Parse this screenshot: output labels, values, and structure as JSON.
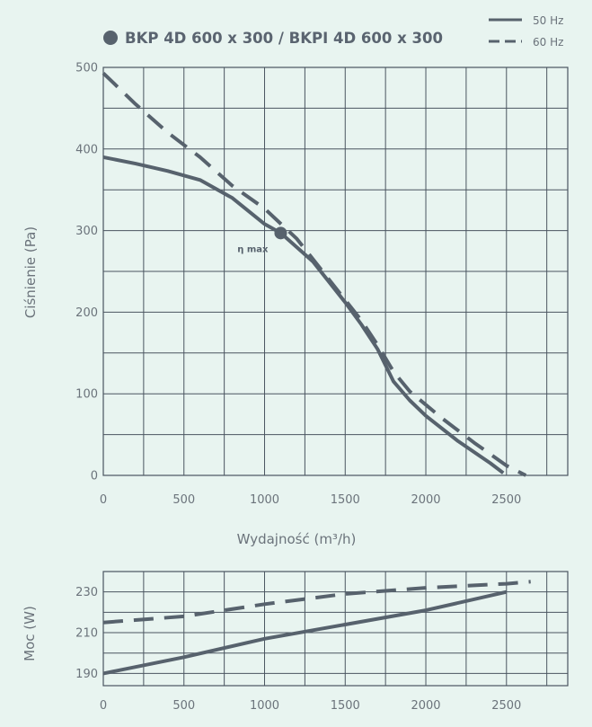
{
  "colors": {
    "background": "#e8f4f0",
    "grid": "#4a5560",
    "series": "#57626d",
    "text": "#6b737b",
    "title": "#5a6470"
  },
  "legend": {
    "marker_icon": "filled-circle",
    "model": "BKP 4D 600 x 300 / BKPI 4D 600 x 300",
    "solid_label": "50 Hz",
    "dashed_label": "60 Hz"
  },
  "chart_data": [
    {
      "type": "line",
      "title": "BKP 4D 600 x 300 / BKPI 4D 600 x 300",
      "xlabel": "Wydajność (m³/h)",
      "ylabel": "Ciśnienie (Pa)",
      "xlim": [
        0,
        2880
      ],
      "ylim": [
        0,
        500
      ],
      "grid": true,
      "legend_position": "top-right",
      "x_ticks": [
        0,
        500,
        1000,
        1500,
        2000,
        2500
      ],
      "y_ticks": [
        0,
        100,
        200,
        300,
        400,
        500
      ],
      "series": [
        {
          "name": "50 Hz",
          "style": "solid",
          "points": [
            [
              0,
              390
            ],
            [
              200,
              382
            ],
            [
              400,
              373
            ],
            [
              600,
              362
            ],
            [
              800,
              340
            ],
            [
              1000,
              308
            ],
            [
              1100,
              297
            ],
            [
              1300,
              262
            ],
            [
              1500,
              212
            ],
            [
              1600,
              185
            ],
            [
              1700,
              155
            ],
            [
              1800,
              115
            ],
            [
              1900,
              92
            ],
            [
              2000,
              73
            ],
            [
              2200,
              42
            ],
            [
              2400,
              15
            ],
            [
              2480,
              3
            ]
          ]
        },
        {
          "name": "60 Hz",
          "style": "dashed",
          "points": [
            [
              0,
              493
            ],
            [
              200,
              455
            ],
            [
              400,
              420
            ],
            [
              600,
              390
            ],
            [
              800,
              355
            ],
            [
              1000,
              327
            ],
            [
              1200,
              290
            ],
            [
              1400,
              240
            ],
            [
              1600,
              190
            ],
            [
              1700,
              160
            ],
            [
              1800,
              127
            ],
            [
              1900,
              103
            ],
            [
              2100,
              70
            ],
            [
              2300,
              40
            ],
            [
              2500,
              12
            ],
            [
              2620,
              0
            ]
          ]
        }
      ],
      "annotations": [
        {
          "text": "η max",
          "x": 1100,
          "y": 297
        }
      ]
    },
    {
      "type": "line",
      "xlabel": "",
      "ylabel": "Moc (W)",
      "xlim": [
        0,
        2880
      ],
      "ylim": [
        184,
        240
      ],
      "grid": true,
      "x_ticks": [
        0,
        500,
        1000,
        1500,
        2000,
        2500
      ],
      "y_ticks": [
        190,
        210,
        230
      ],
      "series": [
        {
          "name": "50 Hz",
          "style": "solid",
          "points": [
            [
              0,
              190
            ],
            [
              500,
              198
            ],
            [
              1000,
              207
            ],
            [
              1500,
              214
            ],
            [
              2000,
              221
            ],
            [
              2500,
              230
            ]
          ]
        },
        {
          "name": "60 Hz",
          "style": "dashed",
          "points": [
            [
              0,
              215
            ],
            [
              500,
              218
            ],
            [
              1000,
              224
            ],
            [
              1500,
              229
            ],
            [
              2000,
              232
            ],
            [
              2500,
              234
            ],
            [
              2650,
              235
            ]
          ]
        }
      ]
    }
  ]
}
